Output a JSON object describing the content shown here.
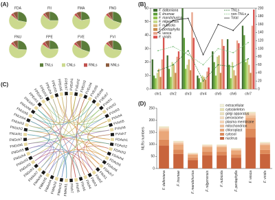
{
  "chart_data": [
    {
      "type": "pie",
      "label": "(A)",
      "categories": [
        "TNLs",
        "CNLs",
        "RNLs",
        "NNLs"
      ],
      "colors": [
        "#5b7d3a",
        "#cbd98e",
        "#c0504d",
        "#8b5a3c"
      ],
      "pies": [
        {
          "title": "FDA",
          "values": [
            28,
            58,
            5,
            9
          ]
        },
        {
          "title": "FII",
          "values": [
            25,
            62,
            4,
            9
          ]
        },
        {
          "title": "FMA",
          "values": [
            22,
            64,
            5,
            9
          ]
        },
        {
          "title": "FNG",
          "values": [
            30,
            56,
            5,
            9
          ]
        },
        {
          "title": "FNU",
          "values": [
            26,
            60,
            5,
            9
          ]
        },
        {
          "title": "FPE",
          "values": [
            24,
            61,
            6,
            9
          ]
        },
        {
          "title": "FVE",
          "values": [
            30,
            55,
            5,
            10
          ]
        },
        {
          "title": "FVI",
          "values": [
            27,
            59,
            5,
            9
          ]
        }
      ]
    },
    {
      "type": "bar",
      "label": "(B)",
      "categories": [
        "chr1",
        "chr2",
        "chr3",
        "chr4",
        "chr5",
        "chr6",
        "chr7"
      ],
      "ylim": [
        0,
        60
      ],
      "yticks": [
        0,
        10,
        20,
        30,
        40,
        50,
        60
      ],
      "y2lim": [
        0,
        200
      ],
      "y2ticks": [
        0,
        20,
        40,
        60,
        80,
        100,
        120,
        140,
        160,
        180,
        200
      ],
      "series": [
        {
          "name": "F. daltoniana",
          "color": "#3f6e2f",
          "values": [
            22,
            25,
            60,
            10,
            28,
            37,
            47
          ]
        },
        {
          "name": "F. iinumae",
          "color": "#5d9e3a",
          "values": [
            10,
            15,
            38,
            8,
            20,
            18,
            40
          ]
        },
        {
          "name": "F. mandshurica",
          "color": "#8fc04a",
          "values": [
            8,
            9,
            15,
            5,
            10,
            8,
            20
          ]
        },
        {
          "name": "F. nilgerensis",
          "color": "#c7d98a",
          "values": [
            12,
            20,
            18,
            10,
            24,
            20,
            22
          ]
        },
        {
          "name": "F. nubicola",
          "color": "#d8b57a",
          "values": [
            15,
            18,
            22,
            9,
            25,
            14,
            18
          ]
        },
        {
          "name": "F. pentaphylla",
          "color": "#c98a4a",
          "values": [
            9,
            12,
            14,
            7,
            12,
            10,
            12
          ]
        },
        {
          "name": "F. vesca",
          "color": "#e8a38a",
          "values": [
            22,
            24,
            57,
            13,
            37,
            36,
            47
          ]
        },
        {
          "name": "F. viridis",
          "color": "#d9534f",
          "values": [
            38,
            28,
            38,
            16,
            32,
            34,
            59
          ]
        },
        {
          "name": "TNLs",
          "color": "#2e7d32",
          "axis": "y2",
          "dashed": true,
          "values": [
            45,
            60,
            95,
            20,
            60,
            55,
            75
          ]
        },
        {
          "name": "non-TNLs",
          "color": "#7fbf7f",
          "axis": "y2",
          "dashed": true,
          "values": [
            95,
            105,
            85,
            60,
            100,
            90,
            115
          ]
        },
        {
          "name": "Total",
          "color": "#222222",
          "axis": "y2",
          "dashed": false,
          "values": [
            140,
            170,
            175,
            85,
            160,
            145,
            185
          ]
        }
      ]
    },
    {
      "type": "chord",
      "label": "(C)",
      "nodes": [
        "FVEch1",
        "FVEch2",
        "FVEch3",
        "FVEch4",
        "FVEch5",
        "FVEch6",
        "FVEch7",
        "FVIch1",
        "FVIch2",
        "FVIch3",
        "FVIch4",
        "FVIch5",
        "FVIch6",
        "FVIch7",
        "FDAch1",
        "FDAch2",
        "FDAch3",
        "FDAch4",
        "FDAch5",
        "FDAch6",
        "FDAch7",
        "FIIch1",
        "FIIch2",
        "FIIch3",
        "FIIch4",
        "FIIch5",
        "FIIch6",
        "FIIch7",
        "FMAch1",
        "FMAch2",
        "FMAch3",
        "FMAch4",
        "FMAch5",
        "FMAch6",
        "FMAch7",
        "FNGch1",
        "FNGch2",
        "FNGch3",
        "FNGch4",
        "FNGch5",
        "FNGch6",
        "FNGch7",
        "FNUch1",
        "FNUch2",
        "FNUch3",
        "FNUch4",
        "FNUch5",
        "FNUch6",
        "FNUch7",
        "FPEch1",
        "FPEch2",
        "FPEch3",
        "FPEch4",
        "FPEch5",
        "FPEch6",
        "FPEch7"
      ]
    },
    {
      "type": "stacked-bar",
      "label": "(D)",
      "ylabel": "NLRs numbers",
      "categories": [
        "F. daltoniana",
        "F. iinumae",
        "F. mandshurica",
        "F. nilgerrensis",
        "F. nubicola",
        "F. pentaphylla",
        "F. vesca",
        "F. viridis"
      ],
      "ylim": [
        0,
        250
      ],
      "yticks": [
        0,
        50,
        100,
        150,
        200,
        250
      ],
      "series": [
        {
          "name": "nucleus",
          "color": "#c8643c",
          "values": [
            95,
            60,
            35,
            55,
            55,
            45,
            130,
            60
          ]
        },
        {
          "name": "cytosol",
          "color": "#de8a5a",
          "values": [
            25,
            18,
            10,
            15,
            15,
            13,
            35,
            17
          ]
        },
        {
          "name": "chloroplast",
          "color": "#eaa779",
          "values": [
            35,
            22,
            12,
            18,
            18,
            16,
            45,
            20
          ]
        },
        {
          "name": "mitochondrion",
          "color": "#f0c09a",
          "values": [
            8,
            6,
            3,
            5,
            5,
            4,
            10,
            5
          ]
        },
        {
          "name": "plasma membrane",
          "color": "#f5d4b5",
          "values": [
            5,
            4,
            2,
            3,
            3,
            3,
            7,
            3
          ]
        },
        {
          "name": "peroxisome",
          "color": "#f3dcc0",
          "values": [
            2,
            1,
            1,
            1,
            1,
            1,
            3,
            1
          ]
        },
        {
          "name": "golgi apparatus",
          "color": "#ece0bd",
          "values": [
            2,
            2,
            1,
            1,
            1,
            1,
            2,
            1
          ]
        },
        {
          "name": "cytoskeleton",
          "color": "#e6e2b5",
          "values": [
            2,
            1,
            1,
            1,
            1,
            1,
            2,
            2
          ]
        },
        {
          "name": "extracellular",
          "color": "#f2efd6",
          "values": [
            1,
            1,
            0,
            1,
            1,
            1,
            1,
            1
          ]
        }
      ]
    }
  ]
}
